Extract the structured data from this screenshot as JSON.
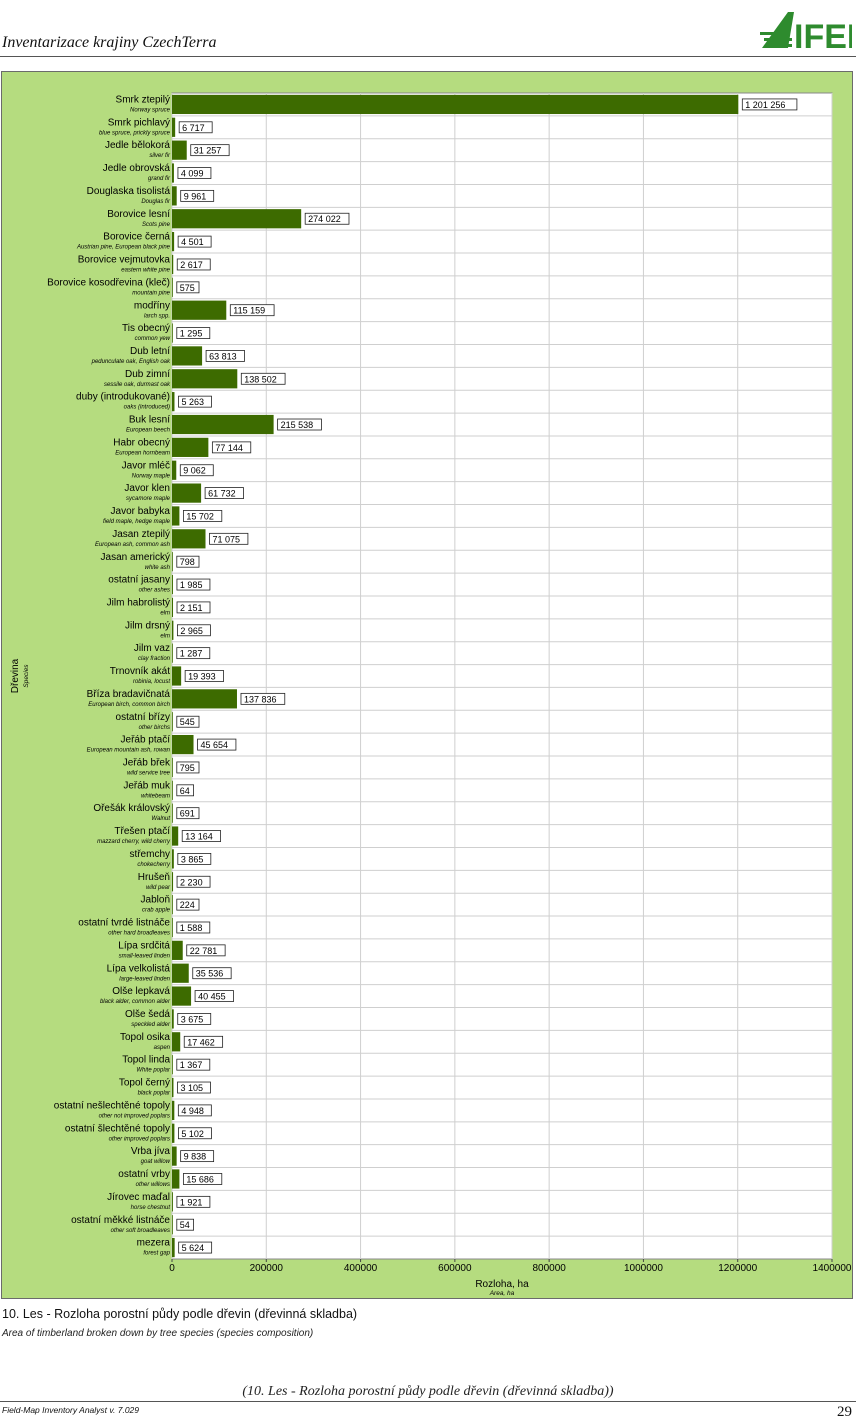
{
  "header": {
    "title": "Inventarizace krajiny CzechTerra",
    "logo_text": "IFER"
  },
  "caption": {
    "main": "10. Les - Rozloha porostní půdy podle dřevin (dřevinná skladba)",
    "sub": "Area of timberland broken down by tree species (species composition)"
  },
  "footer": {
    "center": "(10. Les - Rozloha porostní půdy podle dřevin (dřevinná skladba))",
    "software": "Field-Map Inventory Analyst v. 7.029",
    "page": "29"
  },
  "colors": {
    "bar": "#3d6b00",
    "plot_bg": "#b5dc7f",
    "grid": "#cfcfcf"
  },
  "chart_data": {
    "type": "bar",
    "orientation": "horizontal",
    "xlabel": "Rozloha, ha",
    "xlabel_sub": "Area, ha",
    "ylabel": "Dřevina",
    "ylabel_sub": "Species",
    "xlim": [
      0,
      1400000
    ],
    "xticks": [
      "0",
      "200000",
      "400000",
      "600000",
      "800000",
      "1000000",
      "1200000",
      "1400000"
    ],
    "grid": true,
    "categories": [
      {
        "name": "Smrk ztepilý",
        "sub": "Norway spruce",
        "value": 1201256,
        "label": "1 201 256"
      },
      {
        "name": "Smrk pichlavý",
        "sub": "blue spruce, prickly spruce",
        "value": 6717,
        "label": "6 717"
      },
      {
        "name": "Jedle bělokorá",
        "sub": "silver fir",
        "value": 31257,
        "label": "31 257"
      },
      {
        "name": "Jedle obrovská",
        "sub": "grand fir",
        "value": 4099,
        "label": "4 099"
      },
      {
        "name": "Douglaska tisolistá",
        "sub": "Douglas fir",
        "value": 9961,
        "label": "9 961"
      },
      {
        "name": "Borovice lesní",
        "sub": "Scots pine",
        "value": 274022,
        "label": "274 022"
      },
      {
        "name": "Borovice černá",
        "sub": "Austrian pine, European black pine",
        "value": 4501,
        "label": "4 501"
      },
      {
        "name": "Borovice vejmutovka",
        "sub": "eastern white pine",
        "value": 2617,
        "label": "2 617"
      },
      {
        "name": "Borovice kosodřevina (kleč)",
        "sub": "mountain pine",
        "value": 575,
        "label": "575"
      },
      {
        "name": "modříny",
        "sub": "larch spp.",
        "value": 115159,
        "label": "115 159"
      },
      {
        "name": "Tis obecný",
        "sub": "common yew",
        "value": 1295,
        "label": "1 295"
      },
      {
        "name": "Dub letní",
        "sub": "pedunculate oak, English oak",
        "value": 63813,
        "label": "63 813"
      },
      {
        "name": "Dub zimní",
        "sub": "sessile oak, durmast oak",
        "value": 138502,
        "label": "138 502"
      },
      {
        "name": "duby (introdukované)",
        "sub": "oaks (introduced)",
        "value": 5263,
        "label": "5 263"
      },
      {
        "name": "Buk lesní",
        "sub": "European beech",
        "value": 215538,
        "label": "215 538"
      },
      {
        "name": "Habr obecný",
        "sub": "European hornbeam",
        "value": 77144,
        "label": "77 144"
      },
      {
        "name": "Javor mléč",
        "sub": "Norway maple",
        "value": 9062,
        "label": "9 062"
      },
      {
        "name": "Javor klen",
        "sub": "sycamore maple",
        "value": 61732,
        "label": "61 732"
      },
      {
        "name": "Javor babyka",
        "sub": "field maple, hedge maple",
        "value": 15702,
        "label": "15 702"
      },
      {
        "name": "Jasan ztepilý",
        "sub": "European ash, common ash",
        "value": 71075,
        "label": "71 075"
      },
      {
        "name": "Jasan americký",
        "sub": "white ash",
        "value": 798,
        "label": "798"
      },
      {
        "name": "ostatní jasany",
        "sub": "other ashes",
        "value": 1985,
        "label": "1 985"
      },
      {
        "name": "Jilm habrolistý",
        "sub": "elm",
        "value": 2151,
        "label": "2 151"
      },
      {
        "name": "Jilm drsný",
        "sub": "elm",
        "value": 2965,
        "label": "2 965"
      },
      {
        "name": "Jilm vaz",
        "sub": "clay fraction",
        "value": 1287,
        "label": "1 287"
      },
      {
        "name": "Trnovník akát",
        "sub": "robinia, locust",
        "value": 19393,
        "label": "19 393"
      },
      {
        "name": "Bříza bradavičnatá",
        "sub": "European birch, common birch",
        "value": 137836,
        "label": "137 836"
      },
      {
        "name": "ostatní břízy",
        "sub": "other birchs",
        "value": 545,
        "label": "545"
      },
      {
        "name": "Jeřáb ptačí",
        "sub": "European mountain ash, rowan",
        "value": 45654,
        "label": "45 654"
      },
      {
        "name": "Jeřáb břek",
        "sub": "wild service tree",
        "value": 795,
        "label": "795"
      },
      {
        "name": "Jeřáb muk",
        "sub": "whitebeam",
        "value": 64,
        "label": "64"
      },
      {
        "name": "Ořešák královský",
        "sub": "Walnut",
        "value": 691,
        "label": "691"
      },
      {
        "name": "Třešen ptačí",
        "sub": "mazzard cherry, wild cherry",
        "value": 13164,
        "label": "13 164"
      },
      {
        "name": "střemchy",
        "sub": "chokecherry",
        "value": 3865,
        "label": "3 865"
      },
      {
        "name": "Hrušeň",
        "sub": "wild pear",
        "value": 2230,
        "label": "2 230"
      },
      {
        "name": "Jabloň",
        "sub": "crab apple",
        "value": 224,
        "label": "224"
      },
      {
        "name": "ostatní tvrdé listnáče",
        "sub": "other hard broadleaves",
        "value": 1588,
        "label": "1 588"
      },
      {
        "name": "Lípa srdčitá",
        "sub": "small-leaved linden",
        "value": 22781,
        "label": "22 781"
      },
      {
        "name": "Lípa velkolistá",
        "sub": "large-leaved linden",
        "value": 35536,
        "label": "35 536"
      },
      {
        "name": "Olše lepkavá",
        "sub": "black alder, common alder",
        "value": 40455,
        "label": "40 455"
      },
      {
        "name": "Olše šedá",
        "sub": "speckled alder",
        "value": 3675,
        "label": "3 675"
      },
      {
        "name": "Topol osika",
        "sub": "aspen",
        "value": 17462,
        "label": "17 462"
      },
      {
        "name": "Topol linda",
        "sub": "White poplar",
        "value": 1367,
        "label": "1 367"
      },
      {
        "name": "Topol černý",
        "sub": "black poplar",
        "value": 3105,
        "label": "3 105"
      },
      {
        "name": "ostatní nešlechtěné topoly",
        "sub": "other not improved poplars",
        "value": 4948,
        "label": "4 948"
      },
      {
        "name": "ostatní šlechtěné topoly",
        "sub": "other improved poplars",
        "value": 5102,
        "label": "5 102"
      },
      {
        "name": "Vrba jíva",
        "sub": "goat willow",
        "value": 9838,
        "label": "9 838"
      },
      {
        "name": "ostatní vrby",
        "sub": "other willows",
        "value": 15686,
        "label": "15 686"
      },
      {
        "name": "Jírovec maďal",
        "sub": "horse chestnut",
        "value": 1921,
        "label": "1 921"
      },
      {
        "name": "ostatní měkké listnáče",
        "sub": "other soft broadleaves",
        "value": 54,
        "label": "54"
      },
      {
        "name": "mezera",
        "sub": "forest gap",
        "value": 5624,
        "label": "5 624"
      }
    ]
  }
}
